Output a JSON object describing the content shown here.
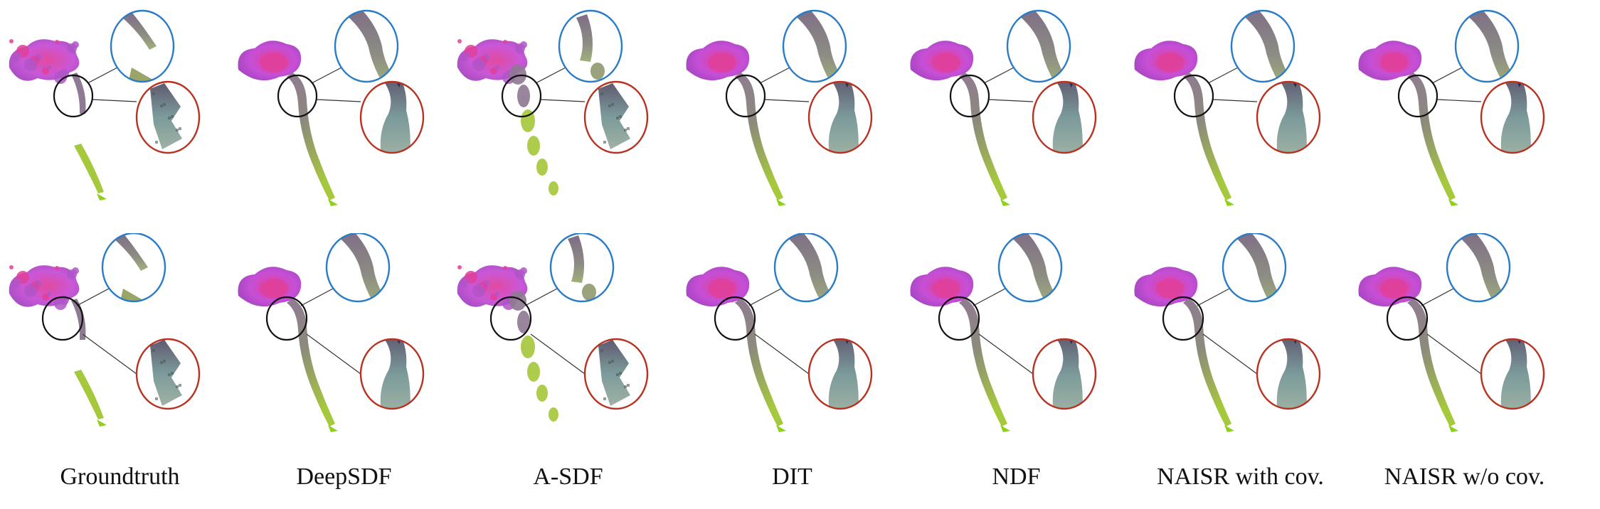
{
  "figure": {
    "columns": [
      {
        "label": "Groundtruth",
        "style": "noisy"
      },
      {
        "label": "DeepSDF",
        "style": "smooth"
      },
      {
        "label": "A-SDF",
        "style": "fragmented"
      },
      {
        "label": "DIT",
        "style": "smooth"
      },
      {
        "label": "NDF",
        "style": "smooth"
      },
      {
        "label": "NAISR with cov.",
        "style": "smooth"
      },
      {
        "label": "NAISR w/o cov.",
        "style": "smooth"
      }
    ],
    "rows": [
      "row-1",
      "row-2"
    ],
    "colors": {
      "top_zoom_circle": "#2a7cc7",
      "bottom_zoom_circle": "#b83222",
      "source_circle": "#111111",
      "head_magenta": "#c64fd6",
      "head_pink": "#e0409a",
      "mid_gray": "#8f7a93",
      "tail_green": "#a6c83c",
      "tail_tip": "#8ed01c"
    }
  }
}
